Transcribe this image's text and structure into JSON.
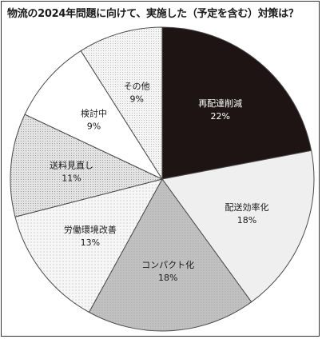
{
  "chart_data": {
    "type": "pie",
    "title": "物流の2024年問題に向けて、実施した（予定を含む）対策は？",
    "slices": [
      {
        "label": "再配達削減",
        "value": 22,
        "value_label": "22%",
        "fill": "#1e1414",
        "text_color": "#ffffff",
        "pattern": "solid"
      },
      {
        "label": "配送効率化",
        "value": 18,
        "value_label": "18%",
        "fill": "#efefef",
        "text_color": "#1a1a1a",
        "pattern": "light"
      },
      {
        "label": "コンパクト化",
        "value": 18,
        "value_label": "18%",
        "fill": "#bdbdbd",
        "text_color": "#1a1a1a",
        "pattern": "gray"
      },
      {
        "label": "労働環境改善",
        "value": 13,
        "value_label": "13%",
        "fill": "#f6f6f6",
        "text_color": "#1a1a1a",
        "pattern": "dots"
      },
      {
        "label": "送料見直し",
        "value": 11,
        "value_label": "11%",
        "fill": "#d8d8d8",
        "text_color": "#1a1a1a",
        "pattern": "mesh"
      },
      {
        "label": "検討中",
        "value": 9,
        "value_label": "9%",
        "fill": "#ffffff",
        "text_color": "#1a1a1a",
        "pattern": "white"
      },
      {
        "label": "その他",
        "value": 9,
        "value_label": "9%",
        "fill": "#f2f2f2",
        "text_color": "#1a1a1a",
        "pattern": "fine-dots"
      }
    ],
    "start": "top",
    "direction": "clockwise",
    "legend": "none"
  }
}
